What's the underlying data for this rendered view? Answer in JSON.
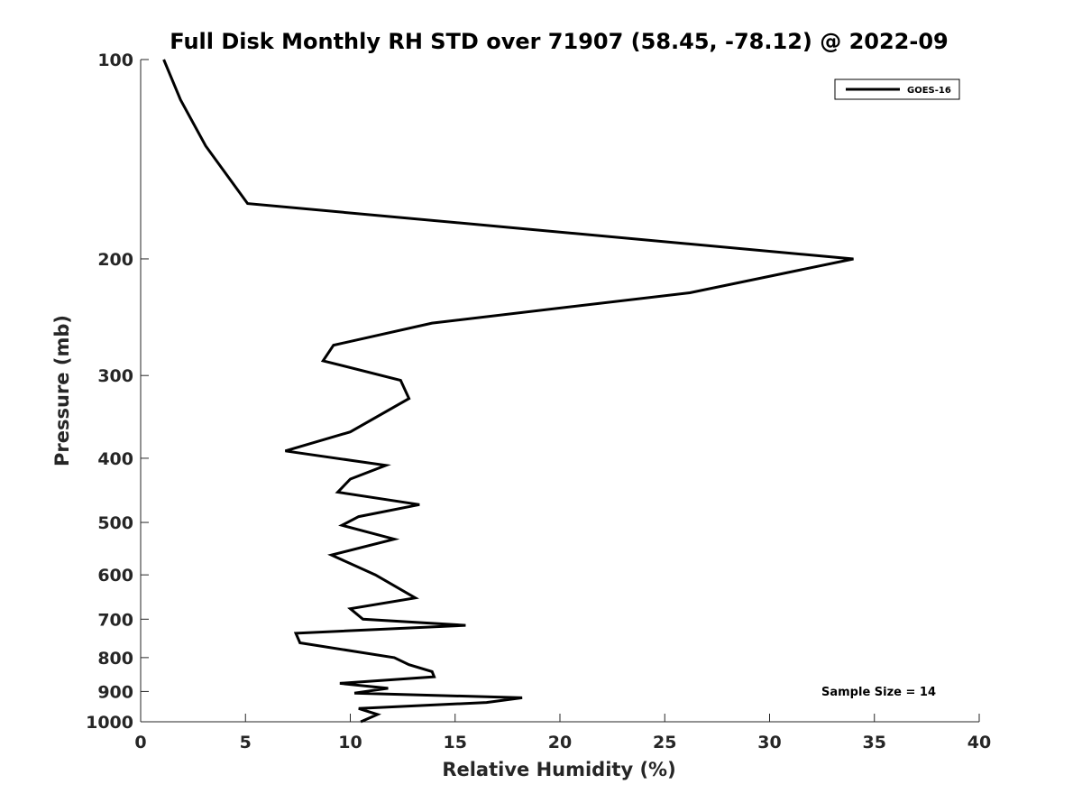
{
  "chart_data": {
    "type": "line",
    "title": "Full Disk Monthly RH STD over 71907 (58.45, -78.12) @ 2022-09",
    "xlabel": "Relative Humidity (%)",
    "ylabel": "Pressure (mb)",
    "xlim": [
      0,
      40
    ],
    "ylim": [
      100,
      1000
    ],
    "yscale": "log",
    "y_reversed": true,
    "xticks": [
      0,
      5,
      10,
      15,
      20,
      25,
      30,
      35,
      40
    ],
    "yticks": [
      100,
      200,
      300,
      400,
      500,
      600,
      700,
      800,
      900,
      1000
    ],
    "grid": false,
    "legend": {
      "location": "top-right",
      "entries": [
        "GOES-16"
      ]
    },
    "annotation": "Sample Size = 14",
    "series": [
      {
        "name": "GOES-16",
        "color": "#000000",
        "x": [
          1.1,
          1.9,
          3.1,
          5.1,
          34.0,
          26.2,
          13.9,
          9.2,
          8.7,
          12.4,
          12.8,
          10.0,
          6.9,
          11.7,
          10.0,
          9.4,
          13.3,
          10.4,
          9.6,
          12.1,
          9.1,
          11.2,
          13.1,
          10.0,
          10.6,
          15.5,
          7.4,
          7.6,
          12.1,
          12.8,
          13.9,
          14.0,
          9.5,
          11.8,
          10.2,
          18.2,
          16.5,
          10.4,
          11.3,
          10.5
        ],
        "y": [
          100,
          115,
          135,
          165,
          200,
          225,
          250,
          270,
          285,
          305,
          325,
          365,
          390,
          410,
          430,
          450,
          470,
          490,
          505,
          530,
          560,
          600,
          650,
          675,
          700,
          715,
          735,
          760,
          800,
          820,
          840,
          855,
          875,
          890,
          905,
          920,
          935,
          955,
          975,
          1000
        ]
      }
    ]
  }
}
